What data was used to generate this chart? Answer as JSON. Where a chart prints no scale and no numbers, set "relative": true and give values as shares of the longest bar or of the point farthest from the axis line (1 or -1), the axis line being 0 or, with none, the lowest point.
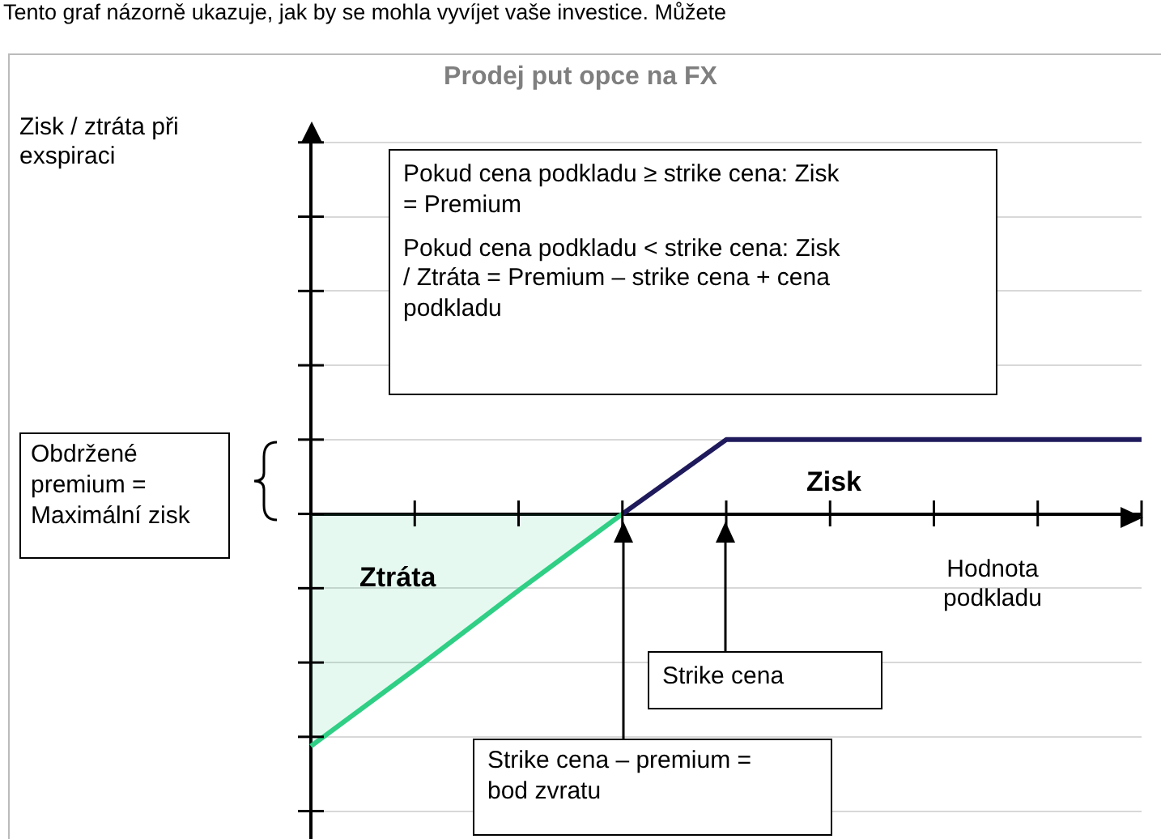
{
  "chart_data": {
    "type": "line",
    "title": "Prodej put opce na FX",
    "xlabel": "Hodnota podkladu",
    "relative": true,
    "grid": "y",
    "legend": false,
    "marker": "none",
    "categories": [
      null,
      null,
      null,
      null,
      null,
      null,
      null,
      null,
      null
    ],
    "series": [
      {
        "type": "area",
        "color": "#2fcf85",
        "values": [
          -1,
          -0.67,
          -0.33,
          0,
          null,
          null,
          null,
          null,
          null
        ]
      },
      {
        "type": "line",
        "color": "#1f1a5c",
        "values": [
          null,
          null,
          null,
          0,
          0.32,
          0.32,
          0.32,
          0.32,
          0.32
        ]
      }
    ],
    "annotations": [
      "Tento graf názorně ukazuje, jak by se mohla vyvíjet vaše investice. Můžete",
      "Pokud cena podkladu ≥ strike cena: Zisk = Premium",
      "Pokud cena podkladu < strike cena: Zisk / Ztráta = Premium – strike cena + cena podkladu",
      "Obdržené premium = Maximální zisk",
      "Zisk",
      "Ztráta",
      "Strike cena",
      "Strike cena – premium = bod zvratu",
      "Zisk / ztráta při exspiraci"
    ]
  }
}
